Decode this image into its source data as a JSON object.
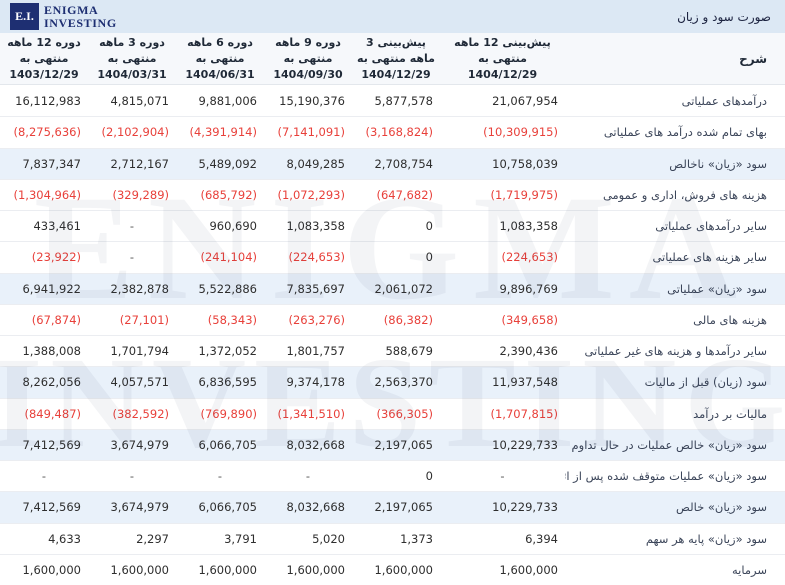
{
  "topbar": {
    "logo_abbr": "E.I.",
    "brand_line1": "Enigma",
    "brand_line2": "Investing",
    "title": "صورت سود و زیان"
  },
  "watermark": {
    "line1": "ENIGMA",
    "line2": "INVESTING"
  },
  "colors": {
    "topbar_bg": "#dce8f4",
    "brand_navy": "#1e2f72",
    "highlight_row": "#e9f1fa",
    "negative_red": "#e8403a"
  },
  "table": {
    "desc_header": "شرح",
    "columns": [
      {
        "label": "پیش‌بینی 12 ماهه منتهی به",
        "date": "1404/12/29"
      },
      {
        "label": "پیش‌بینی 3 ماهه منتهی به",
        "date": "1404/12/29"
      },
      {
        "label": "دوره 9 ماهه منتهی به",
        "date": "1404/09/30"
      },
      {
        "label": "دوره 6 ماهه منتهی به",
        "date": "1404/06/31"
      },
      {
        "label": "دوره 3 ماهه منتهی به",
        "date": "1404/03/31"
      },
      {
        "label": "دوره 12 ماهه منتهی به",
        "date": "1403/12/29"
      }
    ],
    "rows": [
      {
        "label": "درآمدهای عملیاتی",
        "highlight": false,
        "values": [
          "21,067,954",
          "5,877,578",
          "15,190,376",
          "9,881,006",
          "4,815,071",
          "16,112,983"
        ]
      },
      {
        "label": "بهای تمام شده درآمد های عملیاتی",
        "highlight": false,
        "values": [
          "(10,309,915)",
          "(3,168,824)",
          "(7,141,091)",
          "(4,391,914)",
          "(2,102,904)",
          "(8,275,636)"
        ]
      },
      {
        "label": "سود «زیان» ناخالص",
        "highlight": true,
        "values": [
          "10,758,039",
          "2,708,754",
          "8,049,285",
          "5,489,092",
          "2,712,167",
          "7,837,347"
        ]
      },
      {
        "label": "هزینه های فروش، اداری و عمومی",
        "highlight": false,
        "values": [
          "(1,719,975)",
          "(647,682)",
          "(1,072,293)",
          "(685,792)",
          "(329,289)",
          "(1,304,964)"
        ]
      },
      {
        "label": "سایر درآمدهای عملیاتی",
        "highlight": false,
        "values": [
          "1,083,358",
          "0",
          "1,083,358",
          "960,690",
          "-",
          "433,461"
        ]
      },
      {
        "label": "سایر هزینه های عملیاتی",
        "highlight": false,
        "values": [
          "(224,653)",
          "0",
          "(224,653)",
          "(241,104)",
          "-",
          "(23,922)"
        ]
      },
      {
        "label": "سود «زیان» عملیاتی",
        "highlight": true,
        "values": [
          "9,896,769",
          "2,061,072",
          "7,835,697",
          "5,522,886",
          "2,382,878",
          "6,941,922"
        ]
      },
      {
        "label": "هزینه های مالی",
        "highlight": false,
        "values": [
          "(349,658)",
          "(86,382)",
          "(263,276)",
          "(58,343)",
          "(27,101)",
          "(67,874)"
        ]
      },
      {
        "label": "سایر درآمدها و هزینه های غیر عملیاتی",
        "highlight": false,
        "values": [
          "2,390,436",
          "588,679",
          "1,801,757",
          "1,372,052",
          "1,701,794",
          "1,388,008"
        ]
      },
      {
        "label": "سود (زیان) قبل از مالیات",
        "highlight": true,
        "values": [
          "11,937,548",
          "2,563,370",
          "9,374,178",
          "6,836,595",
          "4,057,571",
          "8,262,056"
        ]
      },
      {
        "label": "مالیات بر درآمد",
        "highlight": false,
        "values": [
          "(1,707,815)",
          "(366,305)",
          "(1,341,510)",
          "(769,890)",
          "(382,592)",
          "(849,487)"
        ]
      },
      {
        "label": "سود «زیان» خالص عملیات در حال تداوم",
        "highlight": true,
        "values": [
          "10,229,733",
          "2,197,065",
          "8,032,668",
          "6,066,705",
          "3,674,979",
          "7,412,569"
        ]
      },
      {
        "label": "سود «زیان» عملیات متوقف شده پس از اثر مالیاتی",
        "highlight": false,
        "values": [
          "-",
          "0",
          "-",
          "-",
          "-",
          "-"
        ]
      },
      {
        "label": "سود «زیان» خالص",
        "highlight": true,
        "values": [
          "10,229,733",
          "2,197,065",
          "8,032,668",
          "6,066,705",
          "3,674,979",
          "7,412,569"
        ]
      },
      {
        "label": "سود «زیان» پایه هر سهم",
        "highlight": false,
        "values": [
          "6,394",
          "1,373",
          "5,020",
          "3,791",
          "2,297",
          "4,633"
        ]
      },
      {
        "label": "سرمایه",
        "highlight": false,
        "values": [
          "1,600,000",
          "1,600,000",
          "1,600,000",
          "1,600,000",
          "1,600,000",
          "1,600,000"
        ]
      }
    ]
  }
}
